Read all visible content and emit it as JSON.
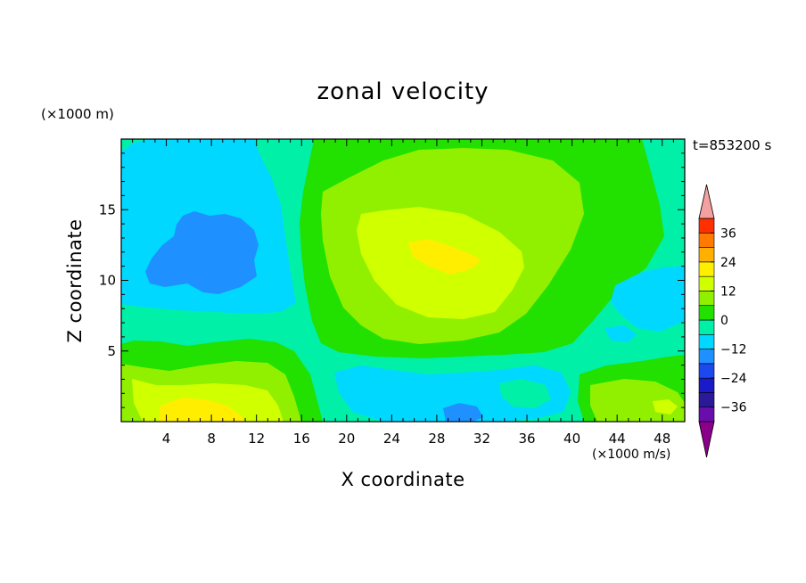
{
  "chart_data": {
    "type": "heatmap",
    "title": "zonal velocity",
    "xlabel": "X coordinate",
    "ylabel": "Z coordinate",
    "x_unit": "(×1000 m/s)",
    "z_unit": "(×1000 m)",
    "time_label": "t=853200 s",
    "xlim": [
      0,
      50
    ],
    "ylim": [
      0,
      20
    ],
    "x_ticks": [
      4,
      8,
      12,
      16,
      20,
      24,
      28,
      32,
      36,
      40,
      44,
      48
    ],
    "y_ticks": [
      5,
      10,
      15
    ],
    "colorbar": {
      "levels": [
        -42,
        -36,
        -30,
        -24,
        -18,
        -12,
        -6,
        0,
        6,
        12,
        18,
        24,
        30,
        36,
        42
      ],
      "tick_labels": [
        36,
        24,
        12,
        0,
        -12,
        -24,
        -36
      ],
      "colors": [
        "#6a0dad",
        "#2a1a9a",
        "#1a1ac8",
        "#1c48f0",
        "#1e90ff",
        "#00d8ff",
        "#00f0a8",
        "#22e000",
        "#90f000",
        "#d0ff00",
        "#ffee00",
        "#ffb000",
        "#ff7a00",
        "#ff3000"
      ],
      "extend_low_color": "#8b008b",
      "extend_high_color": "#f4a0a0"
    },
    "field_samples": [
      {
        "x": 5,
        "z": 1,
        "value": 15
      },
      {
        "x": 9,
        "z": 2,
        "value": 12
      },
      {
        "x": 8,
        "z": 12,
        "value": -20
      },
      {
        "x": 6,
        "z": 16,
        "value": -10
      },
      {
        "x": 19,
        "z": 10,
        "value": 2
      },
      {
        "x": 29,
        "z": 12,
        "value": 17
      },
      {
        "x": 30,
        "z": 0.5,
        "value": -18
      },
      {
        "x": 28,
        "z": 2,
        "value": -10
      },
      {
        "x": 45,
        "z": 2,
        "value": 8
      },
      {
        "x": 48,
        "z": 8,
        "value": -8
      }
    ]
  }
}
